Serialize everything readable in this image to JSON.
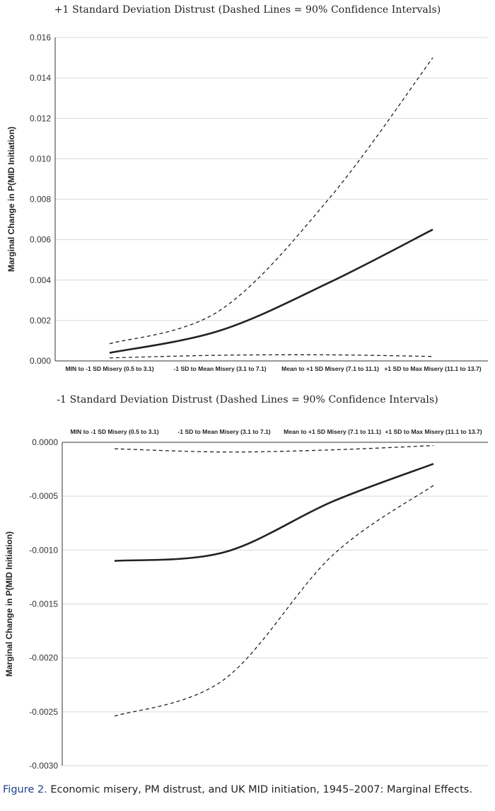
{
  "chart_data": [
    {
      "type": "line",
      "title": "+1 Standard Deviation Distrust (Dashed Lines = 90% Confidence Intervals)",
      "xlabel": "",
      "ylabel": "Marginal Change in P(MID Initiation)",
      "categories": [
        "MIN to -1 SD Misery (0.5 to 3.1)",
        "-1 SD to Mean Misery (3.1 to 7.1)",
        "Mean to +1 SD Misery (7.1 to 11.1)",
        "+1 SD to Max Misery (11.1 to 13.7)"
      ],
      "yticks": [
        "0.016",
        "0.014",
        "0.012",
        "0.010",
        "0.008",
        "0.006",
        "0.004",
        "0.002",
        "0.000"
      ],
      "ylim": [
        0,
        0.016
      ],
      "grid": true,
      "x_axis_position": "bottom",
      "series": [
        {
          "style": "solid",
          "values": [
            0.0004,
            0.0015,
            0.0039,
            0.0065
          ]
        },
        {
          "style": "dashed",
          "values": [
            0.00085,
            0.0025,
            0.0081,
            0.015
          ]
        },
        {
          "style": "dashed",
          "values": [
            0.00015,
            0.00028,
            0.0003,
            0.00022
          ]
        }
      ]
    },
    {
      "type": "line",
      "title": "-1 Standard Deviation Distrust (Dashed Lines = 90% Confidence Intervals)",
      "xlabel": "",
      "ylabel": "Marginal Change in P(MID Initiation)",
      "categories": [
        "MIN to -1 SD Misery (0.5 to 3.1)",
        "-1 SD to Mean Misery (3.1 to 7.1)",
        "Mean to +1 SD Misery (7.1 to 11.1)",
        "+1 SD to Max Misery (11.1 to 13.7)"
      ],
      "yticks": [
        "0.0000",
        "-0.0005",
        "-0.0010",
        "-0.0015",
        "-0.0020",
        "-0.0025",
        "-0.0030"
      ],
      "ylim": [
        -0.003,
        0
      ],
      "grid": true,
      "x_axis_position": "top",
      "series": [
        {
          "style": "solid",
          "values": [
            -0.0011,
            -0.00102,
            -0.00055,
            -0.0002
          ]
        },
        {
          "style": "dashed",
          "values": [
            -6e-05,
            -9e-05,
            -7e-05,
            -3e-05
          ]
        },
        {
          "style": "dashed",
          "values": [
            -0.00254,
            -0.0022,
            -0.00105,
            -0.0004
          ]
        }
      ]
    }
  ],
  "caption": {
    "label": "Figure 2.",
    "text": " Economic misery, PM distrust, and UK MID initiation, 1945–2007: Marginal Effects."
  }
}
